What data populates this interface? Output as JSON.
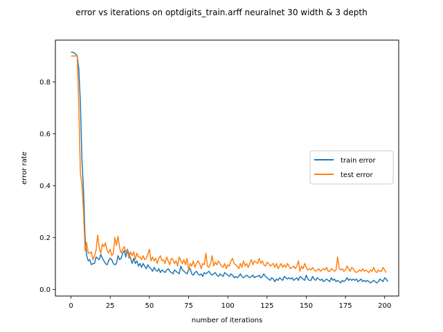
{
  "chart_data": {
    "type": "line",
    "title": "error vs iterations on optdigits_train.arff neuralnet 30 width & 3 depth",
    "xlabel": "number of iterations",
    "ylabel": "error rate",
    "xlim": [
      -9.95,
      208.95
    ],
    "ylim": [
      -0.0255,
      0.9615
    ],
    "xticks": [
      0,
      25,
      50,
      75,
      100,
      125,
      150,
      175,
      200
    ],
    "yticks": [
      0.0,
      0.2,
      0.4,
      0.6,
      0.8
    ],
    "ytick_labels": [
      "0.0",
      "0.2",
      "0.4",
      "0.6",
      "0.8"
    ],
    "grid": false,
    "legend_position": "center right",
    "series": [
      {
        "name": "train error",
        "color": "#1f77b4",
        "values": [
          0.915,
          0.915,
          0.912,
          0.908,
          0.9,
          0.85,
          0.72,
          0.5,
          0.38,
          0.2,
          0.13,
          0.11,
          0.115,
          0.095,
          0.1,
          0.1,
          0.125,
          0.12,
          0.115,
          0.135,
          0.12,
          0.11,
          0.1,
          0.095,
          0.11,
          0.12,
          0.115,
          0.1,
          0.095,
          0.1,
          0.13,
          0.115,
          0.12,
          0.14,
          0.15,
          0.125,
          0.155,
          0.135,
          0.12,
          0.1,
          0.12,
          0.1,
          0.11,
          0.09,
          0.1,
          0.085,
          0.1,
          0.09,
          0.08,
          0.095,
          0.085,
          0.08,
          0.07,
          0.085,
          0.075,
          0.07,
          0.08,
          0.065,
          0.075,
          0.07,
          0.065,
          0.075,
          0.08,
          0.07,
          0.065,
          0.06,
          0.075,
          0.07,
          0.065,
          0.06,
          0.09,
          0.075,
          0.07,
          0.065,
          0.06,
          0.075,
          0.08,
          0.06,
          0.055,
          0.065,
          0.07,
          0.06,
          0.055,
          0.06,
          0.05,
          0.065,
          0.06,
          0.065,
          0.07,
          0.06,
          0.055,
          0.06,
          0.065,
          0.055,
          0.05,
          0.06,
          0.055,
          0.05,
          0.065,
          0.06,
          0.055,
          0.05,
          0.06,
          0.055,
          0.045,
          0.05,
          0.045,
          0.05,
          0.06,
          0.05,
          0.045,
          0.05,
          0.055,
          0.05,
          0.045,
          0.05,
          0.055,
          0.045,
          0.05,
          0.05,
          0.055,
          0.045,
          0.05,
          0.06,
          0.05,
          0.045,
          0.04,
          0.035,
          0.045,
          0.04,
          0.03,
          0.04,
          0.035,
          0.045,
          0.04,
          0.035,
          0.05,
          0.045,
          0.04,
          0.045,
          0.04,
          0.045,
          0.035,
          0.04,
          0.045,
          0.035,
          0.05,
          0.045,
          0.04,
          0.035,
          0.055,
          0.04,
          0.035,
          0.035,
          0.05,
          0.04,
          0.035,
          0.045,
          0.04,
          0.035,
          0.04,
          0.03,
          0.035,
          0.04,
          0.035,
          0.03,
          0.045,
          0.035,
          0.04,
          0.03,
          0.035,
          0.03,
          0.025,
          0.035,
          0.03,
          0.035,
          0.045,
          0.035,
          0.04,
          0.035,
          0.04,
          0.035,
          0.04,
          0.03,
          0.035,
          0.04,
          0.03,
          0.035,
          0.03,
          0.035,
          0.03,
          0.025,
          0.03,
          0.035,
          0.03,
          0.025,
          0.03,
          0.04,
          0.035,
          0.03,
          0.045,
          0.04,
          0.03
        ]
      },
      {
        "name": "test error",
        "color": "#ff7f0e",
        "values": [
          0.9,
          0.9,
          0.9,
          0.9,
          0.9,
          0.7,
          0.45,
          0.4,
          0.3,
          0.15,
          0.18,
          0.14,
          0.14,
          0.145,
          0.115,
          0.13,
          0.15,
          0.21,
          0.16,
          0.14,
          0.175,
          0.165,
          0.18,
          0.15,
          0.14,
          0.155,
          0.13,
          0.14,
          0.2,
          0.17,
          0.205,
          0.16,
          0.14,
          0.155,
          0.165,
          0.145,
          0.15,
          0.12,
          0.145,
          0.13,
          0.145,
          0.115,
          0.14,
          0.125,
          0.125,
          0.115,
          0.13,
          0.115,
          0.12,
          0.135,
          0.155,
          0.11,
          0.125,
          0.11,
          0.12,
          0.1,
          0.12,
          0.13,
          0.11,
          0.115,
          0.1,
          0.125,
          0.11,
          0.095,
          0.12,
          0.115,
          0.1,
          0.11,
          0.09,
          0.125,
          0.11,
          0.1,
          0.115,
          0.095,
          0.12,
          0.075,
          0.1,
          0.09,
          0.11,
          0.085,
          0.1,
          0.11,
          0.1,
          0.08,
          0.1,
          0.095,
          0.14,
          0.09,
          0.085,
          0.1,
          0.13,
          0.09,
          0.105,
          0.095,
          0.11,
          0.1,
          0.09,
          0.085,
          0.1,
          0.08,
          0.095,
          0.09,
          0.11,
          0.12,
          0.1,
          0.095,
          0.09,
          0.08,
          0.1,
          0.085,
          0.11,
          0.09,
          0.1,
          0.085,
          0.1,
          0.115,
          0.095,
          0.11,
          0.105,
          0.1,
          0.12,
          0.1,
          0.11,
          0.095,
          0.09,
          0.105,
          0.1,
          0.09,
          0.095,
          0.1,
          0.085,
          0.1,
          0.08,
          0.09,
          0.1,
          0.085,
          0.095,
          0.085,
          0.1,
          0.09,
          0.08,
          0.085,
          0.09,
          0.08,
          0.09,
          0.11,
          0.07,
          0.09,
          0.08,
          0.1,
          0.085,
          0.075,
          0.08,
          0.075,
          0.085,
          0.075,
          0.07,
          0.075,
          0.08,
          0.07,
          0.075,
          0.08,
          0.075,
          0.085,
          0.07,
          0.07,
          0.08,
          0.075,
          0.07,
          0.075,
          0.125,
          0.08,
          0.075,
          0.08,
          0.07,
          0.075,
          0.09,
          0.08,
          0.07,
          0.085,
          0.08,
          0.07,
          0.065,
          0.07,
          0.075,
          0.07,
          0.08,
          0.07,
          0.075,
          0.07,
          0.065,
          0.075,
          0.07,
          0.085,
          0.07,
          0.065,
          0.075,
          0.07,
          0.07,
          0.085,
          0.075,
          0.065
        ]
      }
    ]
  }
}
